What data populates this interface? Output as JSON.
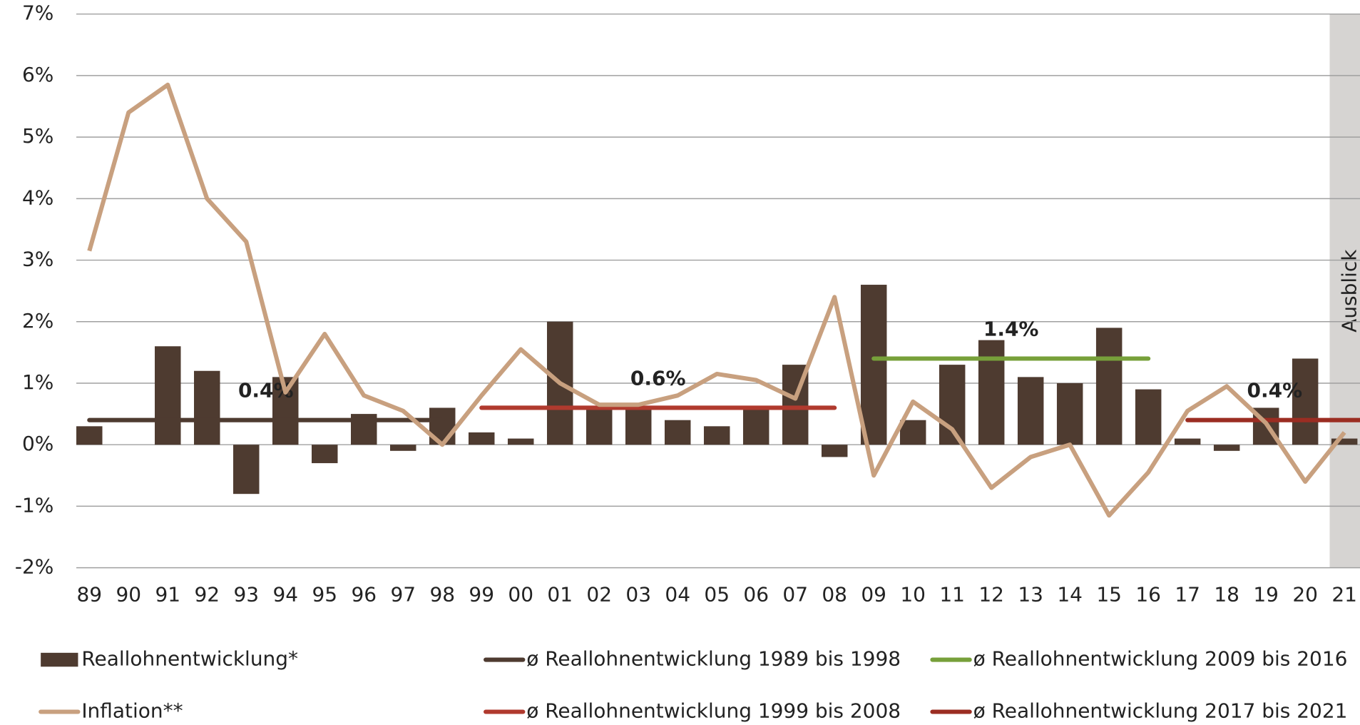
{
  "chart_data": {
    "type": "bar",
    "categories": [
      "89",
      "90",
      "91",
      "92",
      "93",
      "94",
      "95",
      "96",
      "97",
      "98",
      "99",
      "00",
      "01",
      "02",
      "03",
      "04",
      "05",
      "06",
      "07",
      "08",
      "09",
      "10",
      "11",
      "12",
      "13",
      "14",
      "15",
      "16",
      "17",
      "18",
      "19",
      "20",
      "21"
    ],
    "series": [
      {
        "name": "Reallohnentwicklung*",
        "type": "bar",
        "color": "#4e3b30",
        "values": [
          0.3,
          0,
          1.6,
          1.2,
          -0.8,
          1.1,
          -0.3,
          0.5,
          -0.1,
          0.6,
          0.2,
          0.1,
          2.0,
          0.6,
          0.6,
          0.4,
          0.3,
          0.6,
          1.3,
          -0.2,
          2.6,
          0.4,
          1.3,
          1.7,
          1.1,
          1.0,
          1.9,
          0.9,
          0.1,
          -0.1,
          0.6,
          1.4,
          0.1
        ]
      },
      {
        "name": "Inflation**",
        "type": "line",
        "color": "#c8a07f",
        "values": [
          3.15,
          5.4,
          5.85,
          4.0,
          3.3,
          0.85,
          1.8,
          0.8,
          0.55,
          0.0,
          0.8,
          1.55,
          1.0,
          0.65,
          0.65,
          0.8,
          1.15,
          1.05,
          0.75,
          2.4,
          -0.5,
          0.7,
          0.25,
          -0.7,
          -0.2,
          0.0,
          -1.15,
          -0.45,
          0.55,
          0.95,
          0.35,
          -0.6,
          0.2
        ]
      }
    ],
    "averages": [
      {
        "name": "ø Reallohnentwicklung 1989 bis 1998",
        "color": "#4e3b30",
        "from": "89",
        "to": "98",
        "value": 0.4,
        "value_label": "0.4%"
      },
      {
        "name": "ø Reallohnentwicklung 1999 bis 2008",
        "color": "#b03a2e",
        "from": "99",
        "to": "08",
        "value": 0.6,
        "value_label": "0.6%"
      },
      {
        "name": "ø Reallohnentwicklung 2009 bis 2016",
        "color": "#77a03a",
        "from": "09",
        "to": "16",
        "value": 1.4,
        "value_label": "1.4%"
      },
      {
        "name": "ø Reallohnentwicklung 2017 bis 2021",
        "color": "#9b2d22",
        "from": "17",
        "to": "21",
        "value": 0.4,
        "value_label": "0.4%"
      }
    ],
    "shaded": {
      "label": "Ausblick",
      "from": "21"
    },
    "ylim": [
      -2,
      7
    ],
    "yticks": [
      {
        "value": -2,
        "label": "-2%"
      },
      {
        "value": -1,
        "label": "-1%"
      },
      {
        "value": 0,
        "label": "0%"
      },
      {
        "value": 1,
        "label": "1%"
      },
      {
        "value": 2,
        "label": "2%"
      },
      {
        "value": 3,
        "label": "3%"
      },
      {
        "value": 4,
        "label": "4%"
      },
      {
        "value": 5,
        "label": "5%"
      },
      {
        "value": 6,
        "label": "6%"
      },
      {
        "value": 7,
        "label": "7%"
      }
    ],
    "grid": true
  }
}
